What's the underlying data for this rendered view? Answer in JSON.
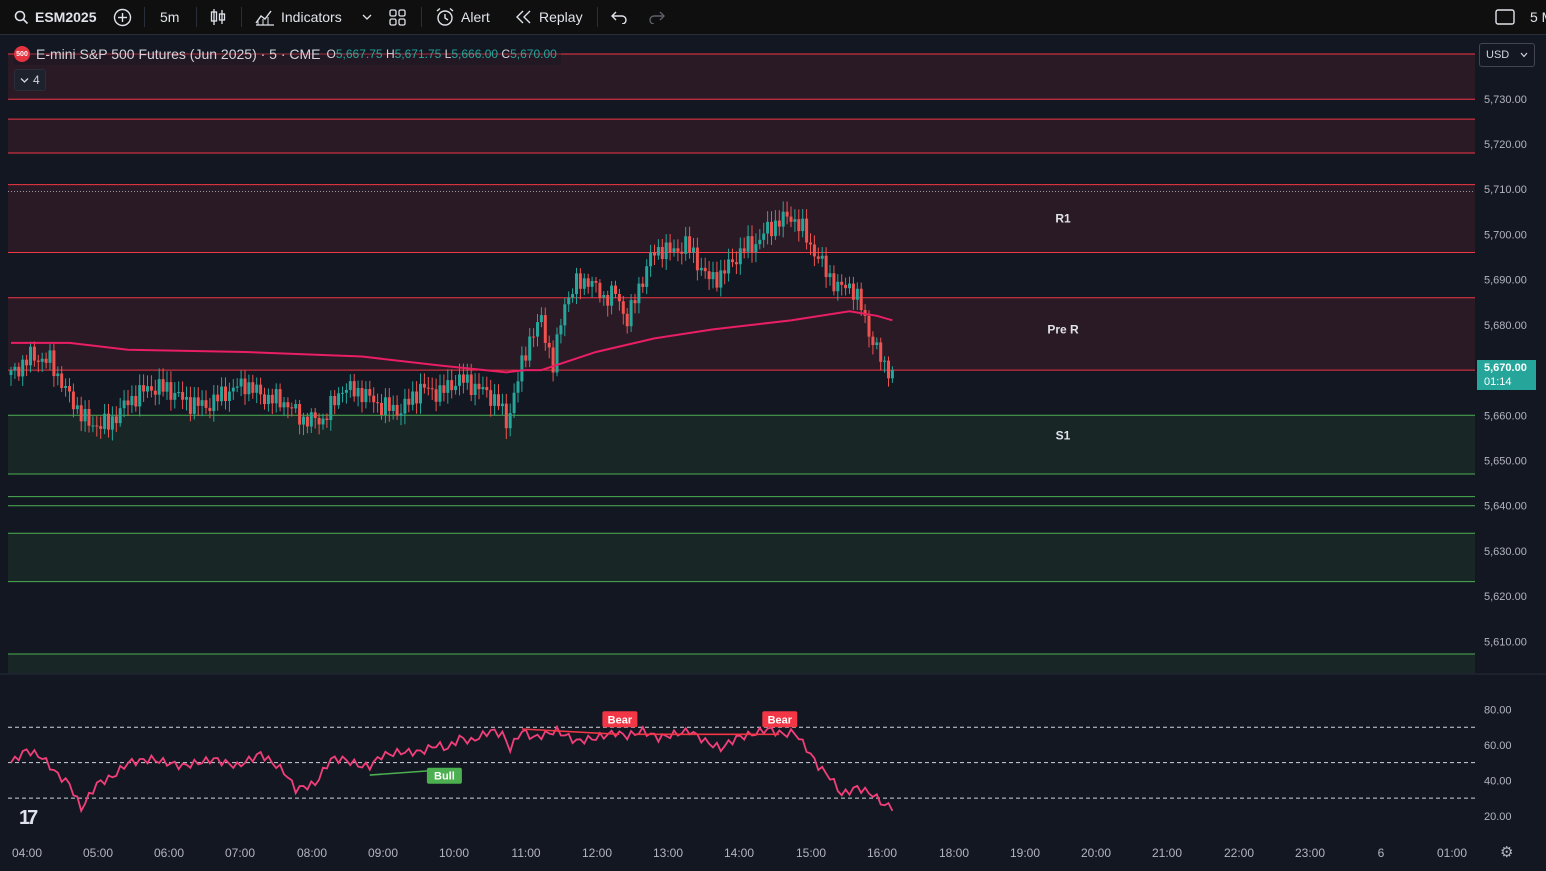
{
  "toolbar": {
    "symbol": "ESM2025",
    "interval": "5m",
    "indicators_label": "Indicators",
    "alert_label": "Alert",
    "replay_label": "Replay",
    "right_partial": "5 M"
  },
  "legend": {
    "title": "E-mini S&P 500 Futures (Jun 2025) · 5 · CME",
    "badge": "500",
    "open_label": "O",
    "open": "5,667.75",
    "high_label": "H",
    "high": "5,671.75",
    "low_label": "L",
    "low": "5,666.00",
    "close_label": "C",
    "close": "5,670.00",
    "collapsed_count": "4"
  },
  "currency": "USD",
  "current_price": {
    "price": "5,670.00",
    "countdown": "01:14"
  },
  "colors": {
    "background": "#131722",
    "up": "#26a69a",
    "down": "#ef5350",
    "resistance": "#f23645",
    "support": "#4caf50",
    "vwap": "#e91e63",
    "rsi": "#f23f7a"
  },
  "chart_data": [
    {
      "type": "candlestick",
      "price_axis_labels": [
        "5,730.00",
        "5,720.00",
        "5,710.00",
        "5,700.00",
        "5,690.00",
        "5,680.00",
        "5,670.00",
        "5,660.00",
        "5,650.00",
        "5,640.00",
        "5,630.00",
        "5,620.00",
        "5,610.00"
      ],
      "ylim": [
        5603,
        5743
      ],
      "time_axis_labels": [
        "04:00",
        "05:00",
        "06:00",
        "07:00",
        "08:00",
        "09:00",
        "10:00",
        "11:00",
        "12:00",
        "13:00",
        "14:00",
        "15:00",
        "16:00",
        "18:00",
        "19:00",
        "20:00",
        "21:00",
        "22:00",
        "23:00",
        "6",
        "01:00"
      ],
      "levels": [
        {
          "price": 5739.9,
          "kind": "resistance"
        },
        {
          "price": 5729.9,
          "kind": "resistance"
        },
        {
          "price": 5725.5,
          "kind": "resistance"
        },
        {
          "price": 5718.0,
          "kind": "resistance"
        },
        {
          "price": 5711.0,
          "kind": "resistance"
        },
        {
          "price": 5696.0,
          "kind": "resistance"
        },
        {
          "price": 5686.0,
          "kind": "resistance"
        },
        {
          "price": 5670.0,
          "kind": "resistance"
        },
        {
          "price": 5660.0,
          "kind": "support"
        },
        {
          "price": 5647.0,
          "kind": "support"
        },
        {
          "price": 5642.0,
          "kind": "support"
        },
        {
          "price": 5640.0,
          "kind": "support"
        },
        {
          "price": 5633.9,
          "kind": "support"
        },
        {
          "price": 5623.2,
          "kind": "support"
        },
        {
          "price": 5607.2,
          "kind": "support"
        }
      ],
      "dotted_level": 5709.5,
      "zone_labels": [
        {
          "text": "R1",
          "price": 5703.5
        },
        {
          "text": "Pre R",
          "price": 5679.0
        },
        {
          "text": "S1",
          "price": 5655.5
        }
      ],
      "anchors": [
        [
          0,
          5669
        ],
        [
          5,
          5673
        ],
        [
          10,
          5672
        ],
        [
          15,
          5664
        ],
        [
          20,
          5658
        ],
        [
          25,
          5658
        ],
        [
          30,
          5663
        ],
        [
          35,
          5666
        ],
        [
          40,
          5666
        ],
        [
          45,
          5663
        ],
        [
          50,
          5662
        ],
        [
          55,
          5665
        ],
        [
          60,
          5667
        ],
        [
          65,
          5664
        ],
        [
          70,
          5663
        ],
        [
          75,
          5659
        ],
        [
          80,
          5659
        ],
        [
          85,
          5666
        ],
        [
          90,
          5665
        ],
        [
          95,
          5662
        ],
        [
          100,
          5661
        ],
        [
          105,
          5666
        ],
        [
          110,
          5665
        ],
        [
          115,
          5668
        ],
        [
          120,
          5666
        ],
        [
          125,
          5663
        ],
        [
          127,
          5658
        ],
        [
          130,
          5668
        ],
        [
          133,
          5677
        ],
        [
          136,
          5681
        ],
        [
          139,
          5671
        ],
        [
          142,
          5685
        ],
        [
          145,
          5689
        ],
        [
          148,
          5690
        ],
        [
          152,
          5686
        ],
        [
          155,
          5687
        ],
        [
          158,
          5681
        ],
        [
          161,
          5688
        ],
        [
          164,
          5695
        ],
        [
          167,
          5697
        ],
        [
          170,
          5696
        ],
        [
          173,
          5698
        ],
        [
          176,
          5694
        ],
        [
          179,
          5690
        ],
        [
          182,
          5691
        ],
        [
          185,
          5694
        ],
        [
          188,
          5697
        ],
        [
          191,
          5698
        ],
        [
          194,
          5701
        ],
        [
          197,
          5703
        ],
        [
          200,
          5704
        ],
        [
          203,
          5701
        ],
        [
          206,
          5696
        ],
        [
          209,
          5692
        ],
        [
          212,
          5688
        ],
        [
          215,
          5689
        ],
        [
          218,
          5684
        ],
        [
          221,
          5676
        ],
        [
          224,
          5671
        ],
        [
          226,
          5670
        ]
      ],
      "vwap": [
        [
          0,
          5676
        ],
        [
          15,
          5676
        ],
        [
          30,
          5674.5
        ],
        [
          60,
          5674
        ],
        [
          90,
          5673
        ],
        [
          110,
          5671
        ],
        [
          127,
          5669.5
        ],
        [
          132,
          5670
        ],
        [
          136,
          5670
        ],
        [
          150,
          5674
        ],
        [
          165,
          5677
        ],
        [
          180,
          5679
        ],
        [
          200,
          5681
        ],
        [
          215,
          5683
        ],
        [
          222,
          5682
        ],
        [
          226,
          5681
        ]
      ]
    },
    {
      "type": "line",
      "name": "RSI",
      "axis_labels": [
        "80.00",
        "60.00",
        "40.00",
        "20.00"
      ],
      "ylim": [
        12,
        91
      ],
      "bands": [
        70,
        50,
        30
      ],
      "anchors": [
        [
          0,
          50
        ],
        [
          4,
          57
        ],
        [
          8,
          53
        ],
        [
          12,
          43
        ],
        [
          15,
          38
        ],
        [
          18,
          24
        ],
        [
          22,
          38
        ],
        [
          26,
          42
        ],
        [
          30,
          50
        ],
        [
          36,
          52
        ],
        [
          44,
          48
        ],
        [
          52,
          52
        ],
        [
          58,
          48
        ],
        [
          64,
          55
        ],
        [
          70,
          45
        ],
        [
          73,
          35
        ],
        [
          78,
          38
        ],
        [
          82,
          52
        ],
        [
          85,
          52
        ],
        [
          90,
          48
        ],
        [
          92,
          48
        ],
        [
          95,
          54
        ],
        [
          100,
          56
        ],
        [
          105,
          56
        ],
        [
          109,
          60
        ],
        [
          112,
          58
        ],
        [
          115,
          64
        ],
        [
          118,
          62
        ],
        [
          123,
          68
        ],
        [
          126,
          66
        ],
        [
          128,
          58
        ],
        [
          131,
          68
        ],
        [
          134,
          64
        ],
        [
          140,
          68
        ],
        [
          145,
          62
        ],
        [
          150,
          64
        ],
        [
          155,
          67
        ],
        [
          158,
          65
        ],
        [
          162,
          68
        ],
        [
          166,
          64
        ],
        [
          170,
          66
        ],
        [
          174,
          68
        ],
        [
          178,
          62
        ],
        [
          182,
          58
        ],
        [
          186,
          64
        ],
        [
          190,
          66
        ],
        [
          194,
          69
        ],
        [
          198,
          66
        ],
        [
          201,
          67
        ],
        [
          204,
          58
        ],
        [
          207,
          48
        ],
        [
          210,
          42
        ],
        [
          213,
          32
        ],
        [
          217,
          36
        ],
        [
          221,
          32
        ],
        [
          224,
          26
        ],
        [
          226,
          25
        ]
      ],
      "divergences": [
        {
          "label": "Bear",
          "x1": 131,
          "y1": 69,
          "x2": 156,
          "y2": 66
        },
        {
          "label": "Bear",
          "x1": 160,
          "y1": 66,
          "x2": 197,
          "y2": 66
        },
        {
          "label": "Bull",
          "x1": 92,
          "y1": 43,
          "x2": 111,
          "y2": 46
        }
      ]
    }
  ]
}
